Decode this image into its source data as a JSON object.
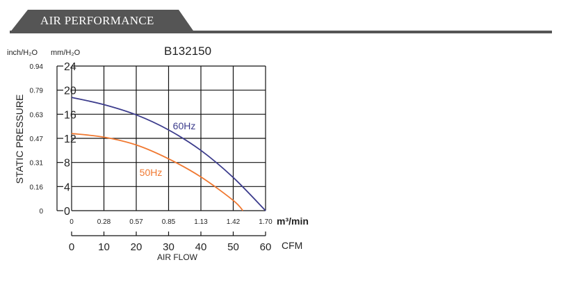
{
  "section": {
    "title": "AIR PERFORMANCE"
  },
  "colors": {
    "header_bg": "#555555",
    "grid": "#111111",
    "series_60hz": "#3c3c8c",
    "series_50hz": "#f07830"
  },
  "chart_data": {
    "type": "line",
    "title": "B132150",
    "ylabel": "STATIC PRESSURE",
    "ylabel_units_left": "inch/H₂O",
    "ylabel_units_right": "mm/H₂O",
    "ylim": [
      0,
      24
    ],
    "y_ticks_mm": [
      "0",
      "4",
      "8",
      "12",
      "16",
      "20",
      "24"
    ],
    "y_ticks_inch": [
      "0",
      "0.16",
      "0.31",
      "0.47",
      "0.63",
      "0.79",
      "0.94"
    ],
    "xlim": [
      0,
      60
    ],
    "x_ticks_m3": [
      "0",
      "0.28",
      "0.57",
      "0.85",
      "1.13",
      "1.42",
      "1.70"
    ],
    "x_unit_m3": "m³/min",
    "x_ticks_cfm": [
      "0",
      "10",
      "20",
      "30",
      "40",
      "50",
      "60"
    ],
    "x_unit_cfm": "CFM",
    "xlabel": "AIR FLOW",
    "grid": true,
    "series": [
      {
        "name": "60Hz",
        "color": "#3c3c8c",
        "x": [
          0,
          10,
          20,
          30,
          40,
          50,
          60
        ],
        "y": [
          18.8,
          17.6,
          15.9,
          13.4,
          10.0,
          5.5,
          0
        ]
      },
      {
        "name": "50Hz",
        "color": "#f07830",
        "x": [
          0,
          10,
          20,
          30,
          40,
          50,
          53
        ],
        "y": [
          12.8,
          12.2,
          10.9,
          8.6,
          5.6,
          1.7,
          0
        ]
      }
    ]
  }
}
